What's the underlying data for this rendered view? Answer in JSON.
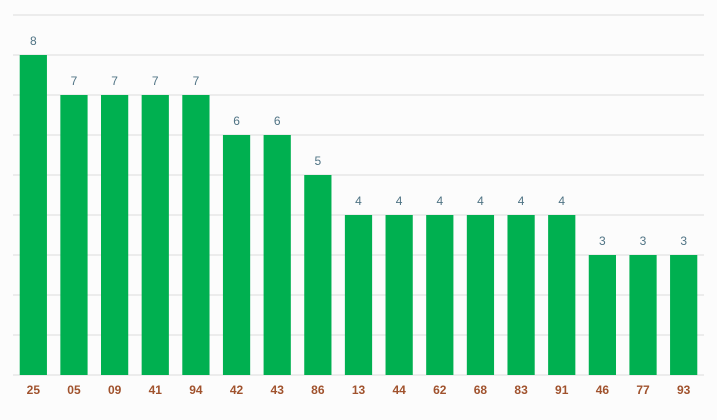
{
  "chart_data": {
    "type": "bar",
    "categories": [
      "25",
      "05",
      "09",
      "41",
      "94",
      "42",
      "43",
      "86",
      "13",
      "44",
      "62",
      "68",
      "83",
      "91",
      "46",
      "77",
      "93"
    ],
    "values": [
      8,
      7,
      7,
      7,
      7,
      6,
      6,
      5,
      4,
      4,
      4,
      4,
      4,
      4,
      3,
      3,
      3
    ],
    "color": "#00b050",
    "ylim": [
      0,
      9
    ],
    "yticks": [
      0,
      1,
      2,
      3,
      4,
      5,
      6,
      7,
      8,
      9
    ],
    "tick_labels": false,
    "grid": true
  }
}
